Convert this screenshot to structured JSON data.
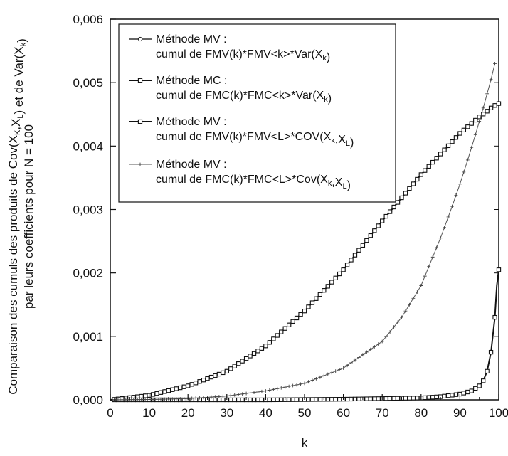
{
  "chart_data": {
    "type": "line",
    "xlabel": "k",
    "ylabel": {
      "line1_parts": [
        {
          "t": "Comparaison des cumuls des produits de Cov(X"
        },
        {
          "t": "K",
          "sub": true
        },
        {
          "t": ",X"
        },
        {
          "t": "L",
          "sub": true
        },
        {
          "t": ") et de Var(X"
        },
        {
          "t": "k",
          "sub": true
        },
        {
          "t": ")"
        }
      ],
      "line2": "par leurs coefficients pour N = 100"
    },
    "xlim": [
      0,
      100
    ],
    "ylim": [
      0,
      0.006
    ],
    "x_ticks": [
      "0",
      "10",
      "20",
      "30",
      "40",
      "50",
      "60",
      "70",
      "80",
      "90",
      "100"
    ],
    "y_ticks": [
      "0,000",
      "0,001",
      "0,002",
      "0,003",
      "0,004",
      "0,005",
      "0,006"
    ],
    "legend_placement": "top-left",
    "grid": false,
    "series": [
      {
        "legend_line1": "Méthode MV :",
        "legend_line2_parts": [
          {
            "t": "cumul de FMV(k)*FMV<k>*Var(X"
          },
          {
            "t": "k",
            "sub": true
          },
          {
            "t": ")"
          }
        ],
        "marker": "circle",
        "x": [
          0,
          10,
          20,
          30,
          40,
          50,
          60,
          70,
          80,
          90,
          95,
          97,
          98,
          99,
          100
        ],
        "y": [
          0,
          7e-05,
          0.00022,
          0.00045,
          0.00085,
          0.0014,
          0.00205,
          0.00282,
          0.00355,
          0.0042,
          0.00446,
          0.00455,
          0.0046,
          0.00464,
          0.00467
        ]
      },
      {
        "legend_line1": "Méthode MC :",
        "legend_line2_parts": [
          {
            "t": "cumul de FMC(k)*FMC<k>*Var(X"
          },
          {
            "t": "k",
            "sub": true
          },
          {
            "t": ")"
          }
        ],
        "marker": "square",
        "x": [
          0,
          10,
          20,
          30,
          40,
          50,
          60,
          70,
          80,
          90,
          95,
          97,
          98,
          99,
          100
        ],
        "y": [
          0,
          7e-05,
          0.00022,
          0.00045,
          0.00085,
          0.0014,
          0.00205,
          0.00282,
          0.00355,
          0.0042,
          0.00446,
          0.00455,
          0.0046,
          0.00464,
          0.00467
        ]
      },
      {
        "legend_line1": "Méthode MV :",
        "legend_line2_parts": [
          {
            "t": "cumul de FMV(k)*FMV<L>*COV(X"
          },
          {
            "t": "k",
            "sub": true
          },
          {
            "t": ",X"
          },
          {
            "t": "L",
            "sub": true
          },
          {
            "t": ")"
          }
        ],
        "marker": "square",
        "x": [
          0,
          20,
          40,
          60,
          80,
          85,
          90,
          93,
          95,
          96,
          97,
          98,
          99,
          99.5,
          100
        ],
        "y": [
          0,
          0,
          0,
          1e-05,
          3e-05,
          5e-05,
          9e-05,
          0.00014,
          0.00022,
          0.0003,
          0.00045,
          0.00075,
          0.0013,
          0.0018,
          0.00205
        ]
      },
      {
        "legend_line1": "Méthode MV :",
        "legend_line2_parts": [
          {
            "t": "cumul de FMC(k)*FMC<L>*Cov(X"
          },
          {
            "t": "k",
            "sub": true
          },
          {
            "t": ",X"
          },
          {
            "t": "L",
            "sub": true
          },
          {
            "t": ")"
          }
        ],
        "marker": "plus",
        "x": [
          0,
          10,
          20,
          30,
          40,
          50,
          60,
          70,
          75,
          80,
          85,
          88,
          90,
          92,
          94,
          96,
          98,
          99
        ],
        "y": [
          0,
          5e-06,
          2e-05,
          6e-05,
          0.00014,
          0.00026,
          0.0005,
          0.00092,
          0.0013,
          0.0018,
          0.00255,
          0.00305,
          0.0034,
          0.00378,
          0.00418,
          0.0046,
          0.00505,
          0.0053
        ]
      }
    ]
  }
}
